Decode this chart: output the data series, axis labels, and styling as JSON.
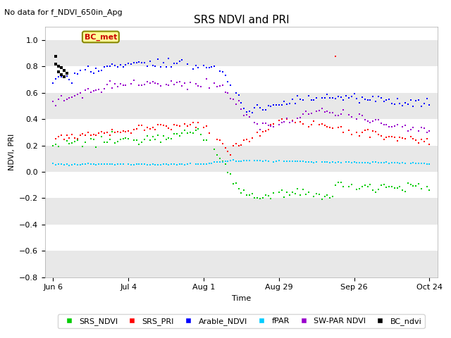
{
  "title": "SRS NDVI and PRI",
  "subtitle": "No data for f_NDVI_650in_Apg",
  "xlabel": "Time",
  "ylabel": "NDVI, PRI",
  "ylim": [
    -0.8,
    1.1
  ],
  "yticks": [
    -0.8,
    -0.6,
    -0.4,
    -0.2,
    0.0,
    0.2,
    0.4,
    0.6,
    0.8,
    1.0
  ],
  "bg_color": "#ffffff",
  "plot_bg_color": "#ffffff",
  "legend_labels": [
    "SRS_NDVI",
    "SRS_PRI",
    "Arable_NDVI",
    "fPAR",
    "SW-PAR NDVI",
    "BC_ndvi"
  ],
  "legend_colors": [
    "#00cc00",
    "#ff0000",
    "#0000ff",
    "#00ccff",
    "#9900cc",
    "#000000"
  ],
  "inset_label": "BC_met",
  "tick_labels": [
    "Jun 6",
    "Jul 4",
    "Aug 1",
    "Aug 29",
    "Sep 26",
    "Oct 24"
  ],
  "tick_days": [
    0,
    28,
    56,
    84,
    112,
    140
  ]
}
